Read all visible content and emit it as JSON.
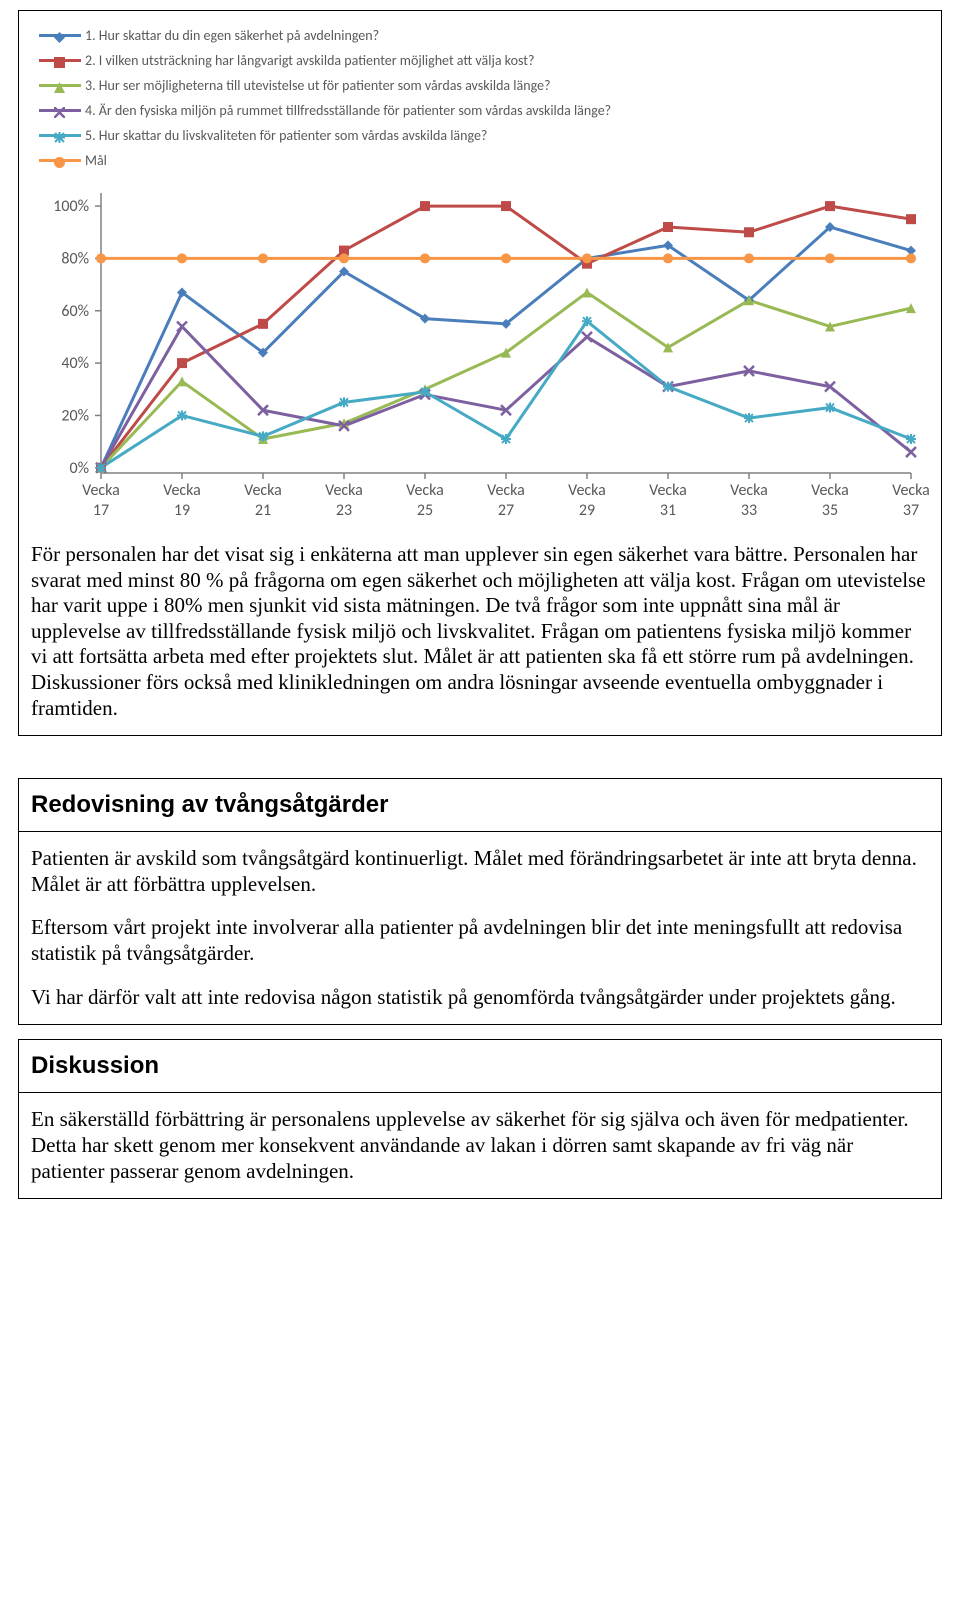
{
  "legend": {
    "items": [
      {
        "label": "1. Hur skattar du din egen säkerhet på avdelningen?",
        "color": "#4a7ebb",
        "marker": "diamond"
      },
      {
        "label": "2. I vilken utsträckning har långvarigt avskilda patienter möjlighet att välja kost?",
        "color": "#be4b48",
        "marker": "square"
      },
      {
        "label": "3. Hur ser möjligheterna till utevistelse ut för patienter som vårdas avskilda länge?",
        "color": "#98b954",
        "marker": "triangle"
      },
      {
        "label": "4. Är den fysiska miljön på rummet tillfredsställande för patienter som vårdas avskilda länge?",
        "color": "#7d60a0",
        "marker": "cross"
      },
      {
        "label": "5. Hur skattar du livskvaliteten för patienter som vårdas avskilda länge?",
        "color": "#46aac5",
        "marker": "star"
      },
      {
        "label": "Mål",
        "color": "#f79646",
        "marker": "circle"
      }
    ]
  },
  "chart": {
    "type": "line",
    "categories": [
      "Vecka 17",
      "Vecka 19",
      "Vecka 21",
      "Vecka 23",
      "Vecka 25",
      "Vecka 27",
      "Vecka 29",
      "Vecka 31",
      "Vecka 33",
      "Vecka 35",
      "Vecka 37"
    ],
    "y_ticks": [
      0,
      20,
      40,
      60,
      80,
      100
    ],
    "y_tick_labels": [
      "0%",
      "20%",
      "40%",
      "60%",
      "80%",
      "100%"
    ],
    "ylim": [
      -2,
      105
    ],
    "background_color": "#ffffff",
    "axis_color": "#808080",
    "tick_color": "#808080",
    "label_fontsize": 16,
    "line_width": 3,
    "marker_size": 10,
    "series": [
      {
        "name": "s1",
        "color": "#4a7ebb",
        "marker": "diamond",
        "values": [
          0,
          67,
          44,
          75,
          57,
          55,
          80,
          85,
          64,
          92,
          83
        ]
      },
      {
        "name": "s2",
        "color": "#be4b48",
        "marker": "square",
        "values": [
          0,
          40,
          55,
          83,
          100,
          100,
          78,
          92,
          90,
          100,
          95
        ]
      },
      {
        "name": "s3",
        "color": "#98b954",
        "marker": "triangle",
        "values": [
          0,
          33,
          11,
          17,
          30,
          44,
          67,
          46,
          64,
          54,
          61
        ]
      },
      {
        "name": "s4",
        "color": "#7d60a0",
        "marker": "cross",
        "values": [
          0,
          54,
          22,
          16,
          28,
          22,
          50,
          31,
          37,
          31,
          6
        ]
      },
      {
        "name": "s5",
        "color": "#46aac5",
        "marker": "star",
        "values": [
          0,
          20,
          12,
          25,
          29,
          11,
          56,
          31,
          19,
          23,
          11
        ]
      },
      {
        "name": "mal",
        "color": "#f79646",
        "marker": "circle",
        "values": [
          80,
          80,
          80,
          80,
          80,
          80,
          80,
          80,
          80,
          80,
          80
        ]
      }
    ]
  },
  "text": {
    "para1": "För personalen har det visat sig i enkäterna att man upplever sin egen säkerhet vara bättre. Personalen har svarat med minst 80 % på frågorna om egen säkerhet och möjligheten att välja kost. Frågan om utevistelse har varit uppe i 80% men sjunkit vid sista mätningen. De två frågor som inte uppnått sina mål är upplevelse av tillfredsställande fysisk miljö och livskvalitet. Frågan om patientens fysiska miljö kommer vi att fortsätta arbeta med efter projektets slut. Målet är att patienten ska få ett större rum på avdelningen. Diskussioner förs också med klinikledningen om andra lösningar avseende eventuella ombyggnader i framtiden.",
    "sec2_title": "Redovisning av tvångsåtgärder",
    "sec2_p1": "Patienten är avskild som tvångsåtgärd kontinuerligt. Målet med förändringsarbetet är inte att bryta denna. Målet är att förbättra upplevelsen.",
    "sec2_p2": "Eftersom vårt projekt inte involverar alla patienter på avdelningen blir det inte meningsfullt att redovisa statistik på tvångsåtgärder.",
    "sec2_p3": "Vi har därför valt att inte redovisa någon statistik på genomförda tvångsåtgärder under projektets gång.",
    "sec3_title": "Diskussion",
    "sec3_p1": "En säkerställd förbättring är personalens upplevelse av säkerhet för sig själva och även för medpatienter. Detta har skett genom mer konsekvent användande av lakan i dörren samt skapande av fri väg när patienter passerar genom avdelningen."
  }
}
